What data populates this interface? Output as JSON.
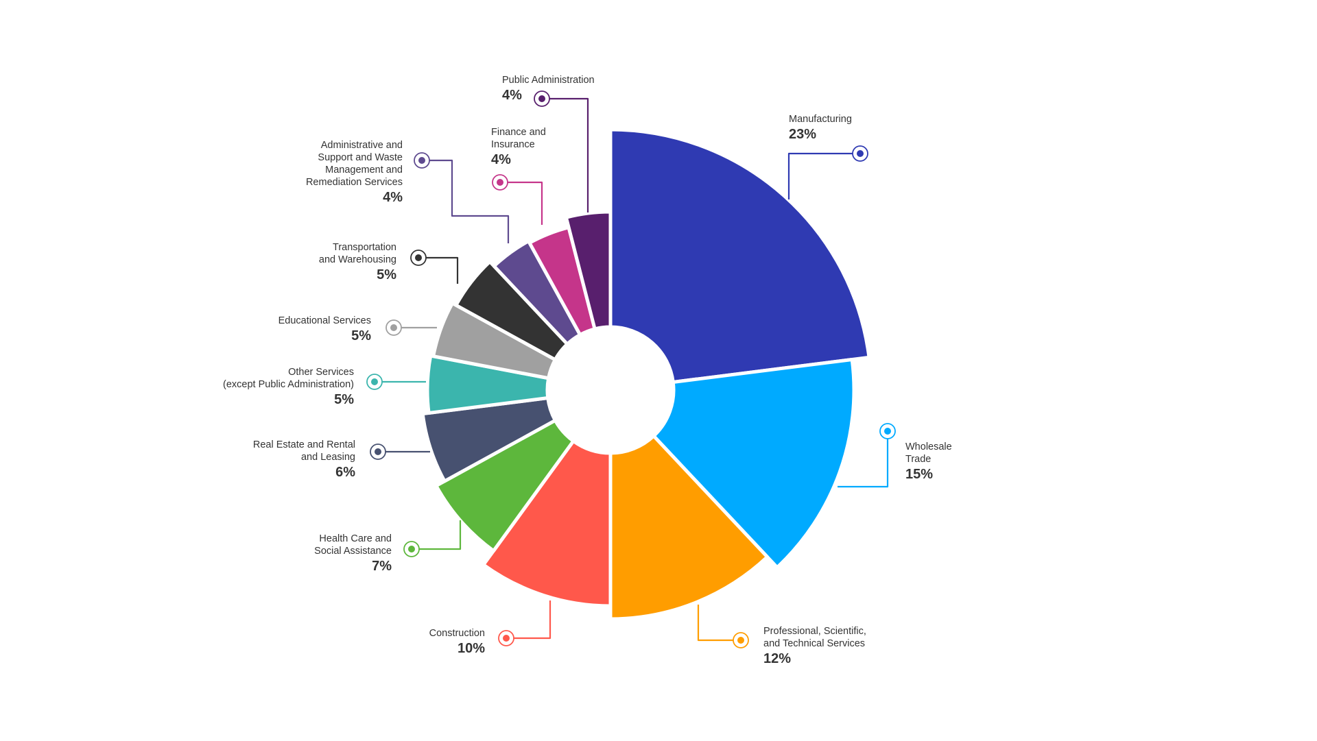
{
  "chart_data": {
    "type": "pie",
    "variant": "variable-radius donut",
    "unit": "%",
    "start_angle": "12 o'clock, clockwise",
    "slices": [
      {
        "label": "Manufacturing",
        "value": 23,
        "pct": "23%",
        "color": "#2f3ab2"
      },
      {
        "label": "Wholesale\nTrade",
        "value": 15,
        "pct": "15%",
        "color": "#00aaff"
      },
      {
        "label": "Professional, Scientific,\nand Technical Services",
        "value": 12,
        "pct": "12%",
        "color": "#ff9d00"
      },
      {
        "label": "Construction",
        "value": 10,
        "pct": "10%",
        "color": "#ff584b"
      },
      {
        "label": "Health Care and\nSocial Assistance",
        "value": 7,
        "pct": "7%",
        "color": "#5db73c"
      },
      {
        "label": "Real Estate and Rental\nand Leasing",
        "value": 6,
        "pct": "6%",
        "color": "#475170"
      },
      {
        "label": "Other Services\n(except Public Administration)",
        "value": 5,
        "pct": "5%",
        "color": "#3bb5ad"
      },
      {
        "label": "Educational Services",
        "value": 5,
        "pct": "5%",
        "color": "#a0a0a0"
      },
      {
        "label": "Transportation\nand Warehousing",
        "value": 5,
        "pct": "5%",
        "color": "#333333"
      },
      {
        "label": "Administrative and\nSupport and Waste\nManagement and\nRemediation Services",
        "value": 4,
        "pct": "4%",
        "color": "#5e4a8f"
      },
      {
        "label": "Finance and\nInsurance",
        "value": 4,
        "pct": "4%",
        "color": "#c5358a"
      },
      {
        "label": "Public Administration",
        "value": 4,
        "pct": "4%",
        "color": "#581f6d"
      }
    ]
  }
}
